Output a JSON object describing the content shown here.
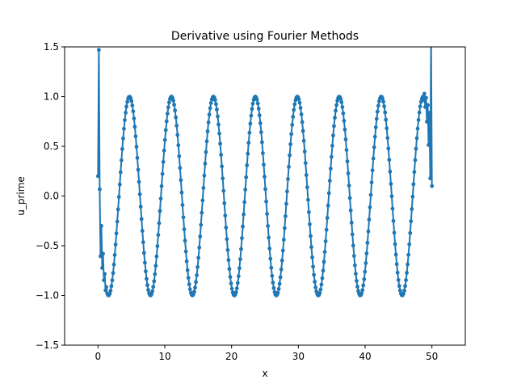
{
  "chart_data": {
    "type": "line",
    "title": "Derivative using Fourier Methods",
    "xlabel": "x",
    "ylabel": "u_prime",
    "xlim": [
      -5,
      55
    ],
    "ylim": [
      -1.5,
      1.5
    ],
    "xticks": [
      0,
      10,
      20,
      30,
      40,
      50
    ],
    "yticks": [
      -1.5,
      -1.0,
      -0.5,
      0.0,
      0.5,
      1.0,
      1.5
    ],
    "xtick_labels": [
      "0",
      "10",
      "20",
      "30",
      "40",
      "50"
    ],
    "ytick_labels": [
      "−1.5",
      "−1.0",
      "−0.5",
      "0.0",
      "0.5",
      "1.0",
      "1.5"
    ],
    "grid": false,
    "series": [
      {
        "color": "#1f77b4",
        "marker": "dot",
        "x_range": [
          0,
          50
        ],
        "n_points": 400,
        "description_function": "-sin(x) with spurious oscillations near x=0 and x=50"
      }
    ]
  }
}
